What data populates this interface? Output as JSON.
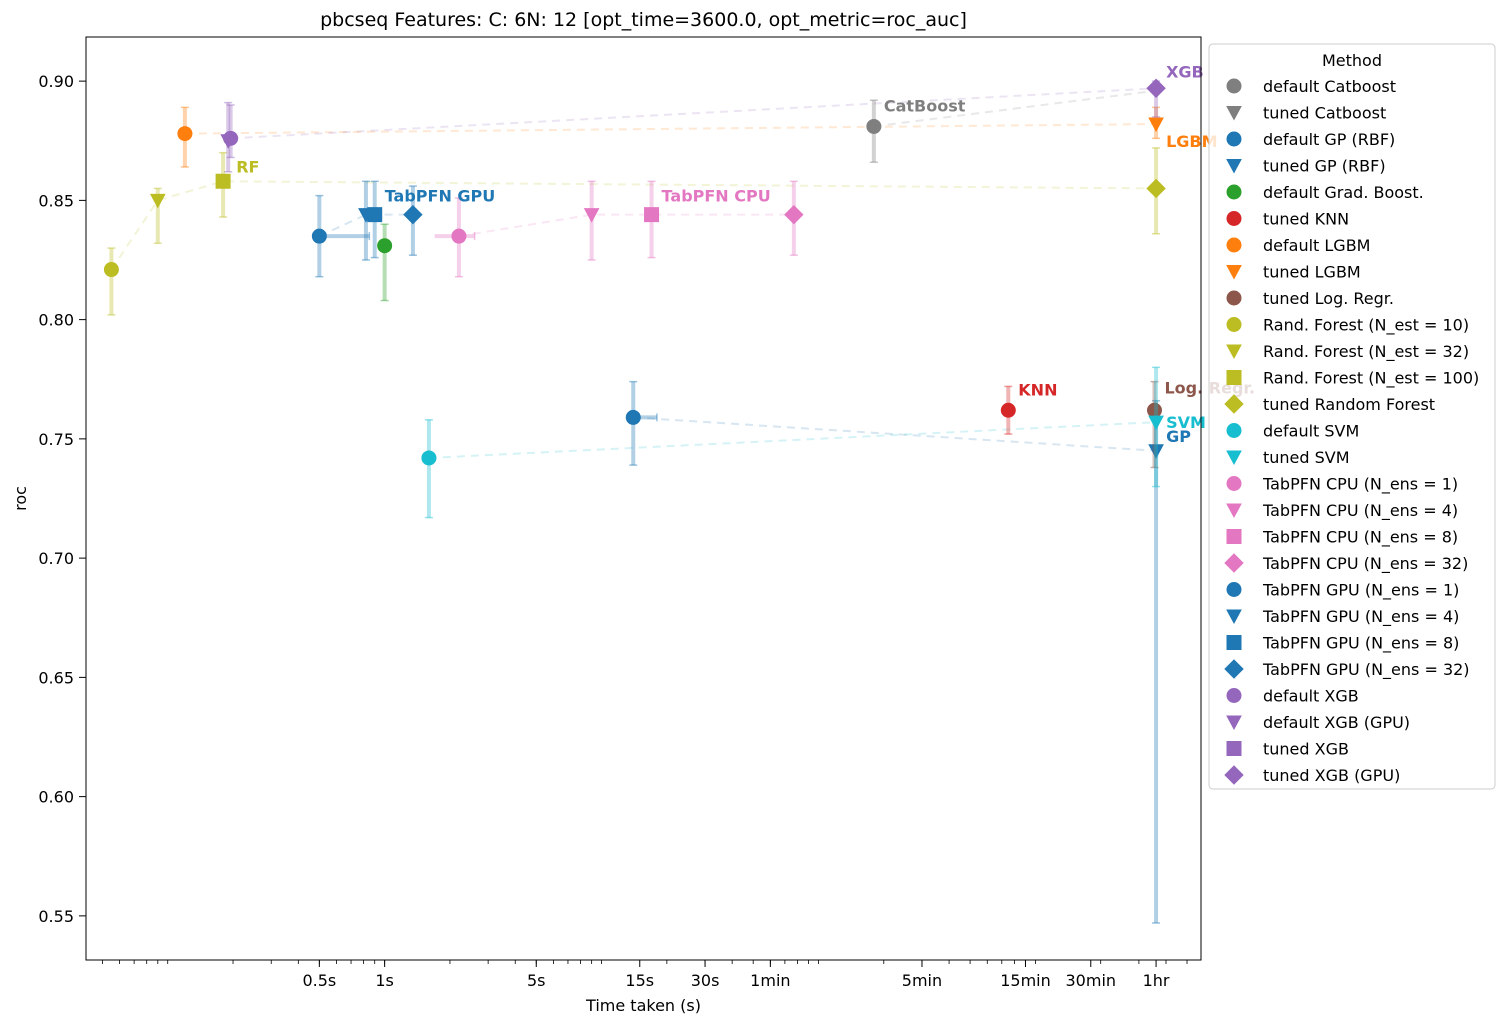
{
  "chart_data": {
    "type": "scatter",
    "title": "pbcseq Features: C: 6N: 12 [opt_time=3600.0, opt_metric=roc_auc]",
    "xlabel": "Time taken (s)",
    "ylabel": "roc",
    "xscale": "log",
    "xlim": [
      0.042,
      5800
    ],
    "ylim": [
      0.5315,
      0.9185
    ],
    "x_ticks": [
      {
        "value": 0.5,
        "label": "0.5s"
      },
      {
        "value": 1,
        "label": "1s"
      },
      {
        "value": 5,
        "label": "5s"
      },
      {
        "value": 15,
        "label": "15s"
      },
      {
        "value": 30,
        "label": "30s"
      },
      {
        "value": 60,
        "label": "1min"
      },
      {
        "value": 300,
        "label": "5min"
      },
      {
        "value": 900,
        "label": "15min"
      },
      {
        "value": 1800,
        "label": "30min"
      },
      {
        "value": 3600,
        "label": "1hr"
      }
    ],
    "y_ticks": [
      {
        "value": 0.55,
        "label": "0.55"
      },
      {
        "value": 0.6,
        "label": "0.60"
      },
      {
        "value": 0.65,
        "label": "0.65"
      },
      {
        "value": 0.7,
        "label": "0.70"
      },
      {
        "value": 0.75,
        "label": "0.75"
      },
      {
        "value": 0.8,
        "label": "0.80"
      },
      {
        "value": 0.85,
        "label": "0.85"
      },
      {
        "value": 0.9,
        "label": "0.90"
      }
    ],
    "grid": false,
    "legend_title": "Method",
    "legend_position": "outside-right",
    "series": [
      {
        "name": "default Catboost",
        "color": "#7f7f7f",
        "marker": "circle",
        "x": 180,
        "y": 0.881,
        "y_err": [
          0.866,
          0.892
        ]
      },
      {
        "name": "tuned Catboost",
        "color": "#7f7f7f",
        "marker": "triangle",
        "x": null,
        "y": null
      },
      {
        "name": "default GP (RBF)",
        "color": "#1f77b4",
        "marker": "circle",
        "x": 14,
        "y": 0.759,
        "y_err": [
          0.739,
          0.774
        ],
        "x_err": [
          14,
          18
        ]
      },
      {
        "name": "tuned GP (RBF)",
        "color": "#1f77b4",
        "marker": "triangle",
        "x": 3600,
        "y": 0.745,
        "y_err": [
          0.547,
          0.766
        ]
      },
      {
        "name": "default Grad. Boost.",
        "color": "#2ca02c",
        "marker": "circle",
        "x": 1.0,
        "y": 0.831,
        "y_err": [
          0.808,
          0.84
        ]
      },
      {
        "name": "tuned KNN",
        "color": "#d62728",
        "marker": "circle",
        "x": 750,
        "y": 0.762,
        "y_err": [
          0.752,
          0.772
        ]
      },
      {
        "name": "default LGBM",
        "color": "#ff7f0e",
        "marker": "circle",
        "x": 0.12,
        "y": 0.878,
        "y_err": [
          0.864,
          0.889
        ]
      },
      {
        "name": "tuned LGBM",
        "color": "#ff7f0e",
        "marker": "triangle",
        "x": 3600,
        "y": 0.882,
        "y_err": [
          0.876,
          0.889
        ]
      },
      {
        "name": "tuned Log. Regr.",
        "color": "#8c564b",
        "marker": "circle",
        "x": 3540,
        "y": 0.762,
        "y_err": [
          0.738,
          0.774
        ]
      },
      {
        "name": "Rand. Forest (N_est =  10)",
        "color": "#bcbd22",
        "marker": "circle",
        "x": 0.055,
        "y": 0.821,
        "y_err": [
          0.802,
          0.83
        ]
      },
      {
        "name": "Rand. Forest (N_est =  32)",
        "color": "#bcbd22",
        "marker": "triangle",
        "x": 0.09,
        "y": 0.85,
        "y_err": [
          0.832,
          0.855
        ]
      },
      {
        "name": "Rand. Forest (N_est = 100)",
        "color": "#bcbd22",
        "marker": "square",
        "x": 0.18,
        "y": 0.858,
        "y_err": [
          0.843,
          0.87
        ]
      },
      {
        "name": "tuned Random Forest",
        "color": "#bcbd22",
        "marker": "diamond",
        "x": 3600,
        "y": 0.855,
        "y_err": [
          0.836,
          0.872
        ]
      },
      {
        "name": "default SVM",
        "color": "#17becf",
        "marker": "circle",
        "x": 1.6,
        "y": 0.742,
        "y_err": [
          0.717,
          0.758
        ]
      },
      {
        "name": "tuned SVM",
        "color": "#17becf",
        "marker": "triangle",
        "x": 3600,
        "y": 0.757,
        "y_err": [
          0.73,
          0.78
        ]
      },
      {
        "name": "TabPFN CPU (N_ens =  1)",
        "color": "#e377c2",
        "marker": "circle",
        "x": 2.2,
        "y": 0.835,
        "y_err": [
          0.818,
          0.851
        ],
        "x_err": [
          1.7,
          2.6
        ]
      },
      {
        "name": "TabPFN CPU (N_ens =  4)",
        "color": "#e377c2",
        "marker": "triangle",
        "x": 9.0,
        "y": 0.844,
        "y_err": [
          0.825,
          0.858
        ]
      },
      {
        "name": "TabPFN CPU (N_ens =  8)",
        "color": "#e377c2",
        "marker": "square",
        "x": 17,
        "y": 0.844,
        "y_err": [
          0.826,
          0.858
        ]
      },
      {
        "name": "TabPFN CPU (N_ens = 32)",
        "color": "#e377c2",
        "marker": "diamond",
        "x": 77,
        "y": 0.844,
        "y_err": [
          0.827,
          0.858
        ]
      },
      {
        "name": "TabPFN GPU (N_ens =  1)",
        "color": "#1f77b4",
        "marker": "circle",
        "x": 0.5,
        "y": 0.835,
        "y_err": [
          0.818,
          0.852
        ],
        "x_err": [
          0.47,
          0.85
        ]
      },
      {
        "name": "TabPFN GPU (N_ens =  4)",
        "color": "#1f77b4",
        "marker": "triangle",
        "x": 0.82,
        "y": 0.844,
        "y_err": [
          0.825,
          0.858
        ]
      },
      {
        "name": "TabPFN GPU (N_ens =  8)",
        "color": "#1f77b4",
        "marker": "square",
        "x": 0.9,
        "y": 0.844,
        "y_err": [
          0.826,
          0.858
        ]
      },
      {
        "name": "TabPFN GPU (N_ens = 32)",
        "color": "#1f77b4",
        "marker": "diamond",
        "x": 1.35,
        "y": 0.844,
        "y_err": [
          0.827,
          0.856
        ]
      },
      {
        "name": "default XGB",
        "color": "#9467bd",
        "marker": "circle",
        "x": 0.195,
        "y": 0.876,
        "y_err": [
          0.868,
          0.89
        ]
      },
      {
        "name": "default XGB (GPU)",
        "color": "#9467bd",
        "marker": "triangle",
        "x": 0.19,
        "y": 0.875,
        "y_err": [
          0.862,
          0.891
        ]
      },
      {
        "name": "tuned XGB",
        "color": "#9467bd",
        "marker": "square",
        "x": null,
        "y": null
      },
      {
        "name": "tuned XGB (GPU)",
        "color": "#9467bd",
        "marker": "diamond",
        "x": 3600,
        "y": 0.897,
        "y_err": [
          0.885,
          0.9
        ]
      }
    ],
    "trend_lines": [
      {
        "color": "#bcbd22",
        "points": [
          [
            0.055,
            0.821
          ],
          [
            0.09,
            0.85
          ],
          [
            0.18,
            0.858
          ],
          [
            3600,
            0.855
          ]
        ]
      },
      {
        "color": "#e377c2",
        "points": [
          [
            2.2,
            0.835
          ],
          [
            9.0,
            0.844
          ],
          [
            17,
            0.844
          ],
          [
            77,
            0.844
          ]
        ]
      },
      {
        "color": "#1f77b4",
        "points": [
          [
            0.5,
            0.835
          ],
          [
            0.82,
            0.844
          ],
          [
            0.9,
            0.844
          ],
          [
            1.35,
            0.844
          ]
        ]
      },
      {
        "color": "#1f77b4",
        "points": [
          [
            14,
            0.759
          ],
          [
            3600,
            0.745
          ]
        ]
      },
      {
        "color": "#17becf",
        "points": [
          [
            1.6,
            0.742
          ],
          [
            3600,
            0.757
          ]
        ]
      },
      {
        "color": "#ff7f0e",
        "points": [
          [
            0.12,
            0.878
          ],
          [
            3600,
            0.882
          ]
        ]
      },
      {
        "color": "#9467bd",
        "points": [
          [
            0.195,
            0.876
          ],
          [
            3600,
            0.897
          ]
        ]
      },
      {
        "color": "#7f7f7f",
        "points": [
          [
            180,
            0.881
          ],
          [
            3600,
            0.896
          ]
        ]
      }
    ],
    "annotations": [
      {
        "text": "XGB",
        "color": "#9467bd",
        "x": 3600,
        "y": 0.897
      },
      {
        "text": "LGBM",
        "color": "#ff7f0e",
        "x": 3600,
        "y": 0.882
      },
      {
        "text": "CatBoost",
        "color": "#7f7f7f",
        "x": 180,
        "y": 0.881
      },
      {
        "text": "RF",
        "color": "#bcbd22",
        "x": 0.19,
        "y": 0.875
      },
      {
        "text": "TabPFN GPU",
        "color": "#1f77b4",
        "x": 0.9,
        "y": 0.844
      },
      {
        "text": "TabPFN CPU",
        "color": "#e377c2",
        "x": 17,
        "y": 0.844
      },
      {
        "text": "KNN",
        "color": "#d62728",
        "x": 750,
        "y": 0.762
      },
      {
        "text": "Log. Regr.",
        "color": "#8c564b",
        "x": 3540,
        "y": 0.762
      },
      {
        "text": "SVM",
        "color": "#17becf",
        "x": 3600,
        "y": 0.757
      },
      {
        "text": "GP",
        "color": "#1f77b4",
        "x": 3600,
        "y": 0.745
      }
    ]
  }
}
